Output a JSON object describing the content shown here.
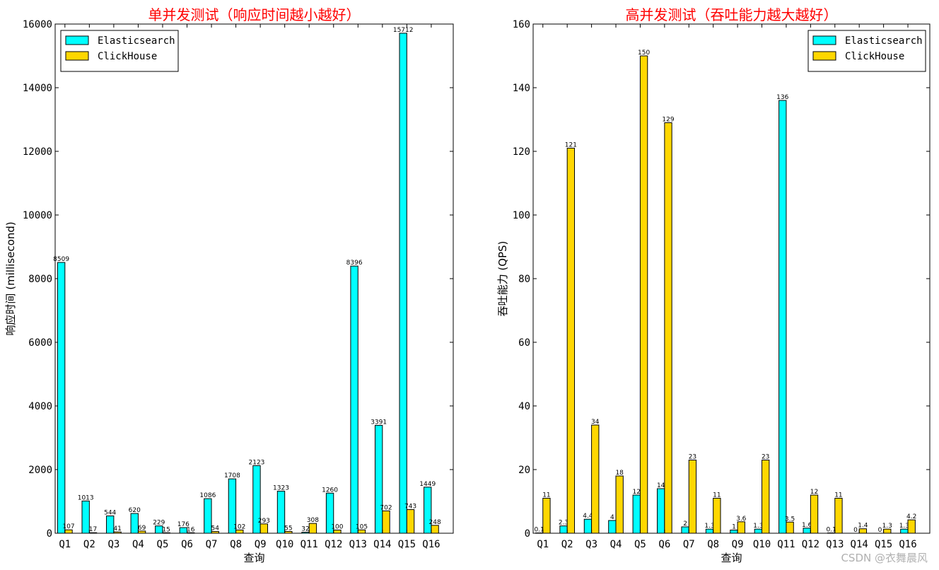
{
  "watermark": "CSDN @衣舞晨风",
  "chart_data": [
    {
      "type": "bar",
      "title": "单并发测试（响应时间越小越好）",
      "xlabel": "查询",
      "ylabel": "响应时间 (millisecond)",
      "ylim": [
        0,
        16000
      ],
      "yticks": [
        0,
        2000,
        4000,
        6000,
        8000,
        10000,
        12000,
        14000,
        16000
      ],
      "legend_position": "top-left",
      "categories": [
        "Q1",
        "Q2",
        "Q3",
        "Q4",
        "Q5",
        "Q6",
        "Q7",
        "Q8",
        "Q9",
        "Q10",
        "Q11",
        "Q12",
        "Q13",
        "Q14",
        "Q15",
        "Q16"
      ],
      "series": [
        {
          "name": "Elasticsearch",
          "color": "#00ffff",
          "values": [
            8509,
            1013,
            544,
            620,
            229,
            176,
            1086,
            1708,
            2123,
            1323,
            32,
            1260,
            8396,
            3391,
            15712,
            1449
          ],
          "labels": [
            "8509",
            "1013",
            "544",
            "620",
            "229",
            "176",
            "1086",
            "1708",
            "2123",
            "1323",
            "32",
            "1260",
            "8396",
            "3391",
            "15712",
            "1449"
          ]
        },
        {
          "name": "ClickHouse",
          "color": "#ffd700",
          "values": [
            107,
            17,
            41,
            69,
            15,
            16,
            54,
            102,
            293,
            55,
            308,
            100,
            105,
            702,
            743,
            248
          ],
          "labels": [
            "107",
            "17",
            "41",
            "69",
            "15",
            "16",
            "54",
            "102",
            "293",
            "55",
            "308",
            "100",
            "105",
            "702",
            "743",
            "248"
          ]
        }
      ]
    },
    {
      "type": "bar",
      "title": "高并发测试（吞吐能力越大越好）",
      "xlabel": "查询",
      "ylabel": "吞吐能力 (QPS)",
      "ylim": [
        0,
        160
      ],
      "yticks": [
        0,
        20,
        40,
        60,
        80,
        100,
        120,
        140,
        160
      ],
      "legend_position": "top-right",
      "categories": [
        "Q1",
        "Q2",
        "Q3",
        "Q4",
        "Q5",
        "Q6",
        "Q7",
        "Q8",
        "Q9",
        "Q10",
        "Q11",
        "Q12",
        "Q13",
        "Q14",
        "Q15",
        "Q16"
      ],
      "series": [
        {
          "name": "Elasticsearch",
          "color": "#00ffff",
          "values": [
            0.1,
            2.3,
            4.4,
            4,
            12,
            14,
            2,
            1.3,
            1,
            1.3,
            136,
            1.6,
            0.1,
            0,
            0,
            1.3
          ],
          "labels": [
            "0.1",
            "2.3",
            "4.4",
            "4",
            "12",
            "14",
            "2",
            "1.3",
            "1",
            "1.3",
            "136",
            "1.6",
            "0.1",
            "0",
            "0",
            "1.3"
          ]
        },
        {
          "name": "ClickHouse",
          "color": "#ffd700",
          "values": [
            11,
            121,
            34,
            18,
            150,
            129,
            23,
            11,
            3.6,
            23,
            3.5,
            12,
            11,
            1.4,
            1.3,
            4.2
          ],
          "labels": [
            "11",
            "121",
            "34",
            "18",
            "150",
            "129",
            "23",
            "11",
            "3.6",
            "23",
            "3.5",
            "12",
            "11",
            "1.4",
            "1.3",
            "4.2"
          ]
        }
      ]
    }
  ]
}
